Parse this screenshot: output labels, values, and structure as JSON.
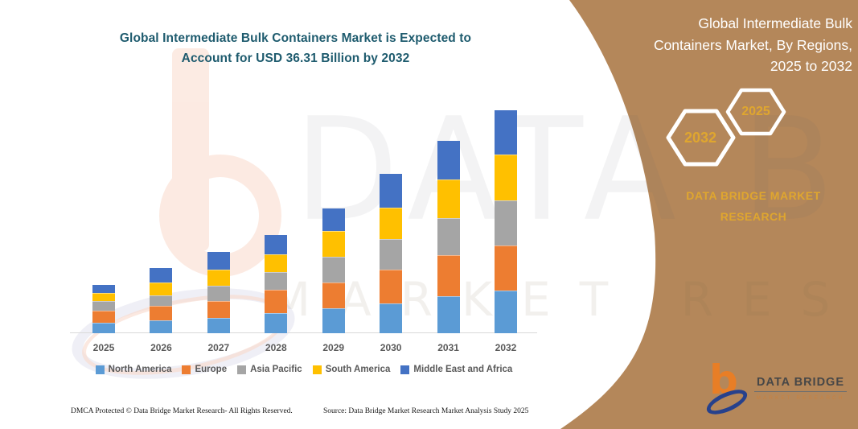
{
  "left_title": {
    "lines": [
      "Global Intermediate Bulk Containers Market is Expected to",
      "Account for USD 36.31 Billion by 2032"
    ]
  },
  "right_panel": {
    "title_lines": [
      "Global Intermediate Bulk",
      "Containers Market, By Regions,",
      "2025 to 2032"
    ],
    "hexagons": [
      {
        "label": "2032"
      },
      {
        "label": "2025"
      }
    ],
    "brand_lines": [
      "DATA BRIDGE MARKET",
      "RESEARCH"
    ]
  },
  "chart_data": {
    "type": "bar",
    "stacked": true,
    "title": "Global Intermediate Bulk Containers Market is Expected to Account for USD 36.31 Billion by 2032",
    "unit": "USD Billion",
    "categories": [
      "2025",
      "2026",
      "2027",
      "2028",
      "2029",
      "2030",
      "2031",
      "2032"
    ],
    "series": [
      {
        "name": "North America",
        "color": "#5B9BD5",
        "values": [
          1.7,
          2.1,
          2.5,
          3.3,
          4.1,
          4.9,
          6.1,
          6.9
        ]
      },
      {
        "name": "Europe",
        "color": "#ED7D31",
        "values": [
          2.0,
          2.4,
          2.8,
          3.8,
          4.2,
          5.4,
          6.6,
          7.4
        ]
      },
      {
        "name": "Asia Pacific",
        "color": "#A5A5A5",
        "values": [
          1.6,
          1.7,
          2.4,
          2.8,
          4.2,
          5.1,
          6.1,
          7.3
        ]
      },
      {
        "name": "South America",
        "color": "#FFC000",
        "values": [
          1.3,
          2.0,
          2.6,
          2.9,
          4.2,
          5.1,
          6.3,
          7.5
        ]
      },
      {
        "name": "Middle East and Africa",
        "color": "#4472C4",
        "values": [
          1.3,
          2.4,
          2.9,
          3.2,
          3.7,
          5.4,
          6.2,
          7.2
        ]
      }
    ],
    "totals": [
      7.9,
      10.6,
      13.2,
      16.0,
      20.4,
      25.9,
      31.3,
      36.31
    ],
    "ylim": [
      0,
      36.31
    ],
    "grid": false,
    "legend_position": "bottom"
  },
  "watermark": {
    "big_text": "DATA B",
    "band_text": "MARKET RESEARCH"
  },
  "logo": {
    "name": "DATA BRIDGE",
    "subtitle": "MARKET RESEARCH"
  },
  "footer": {
    "dmca": "DMCA Protected © Data Bridge Market Research-  All Rights Reserved.",
    "source": "Source: Data Bridge Market Research  Market Analysis Study 2025"
  },
  "colors": {
    "panel_brown": "#B4875A",
    "gold": "#DFA62F",
    "title_teal": "#1E5B6E",
    "axis_text": "#595959",
    "axis_line": "#D9D9D9",
    "white": "#FFFFFF"
  }
}
